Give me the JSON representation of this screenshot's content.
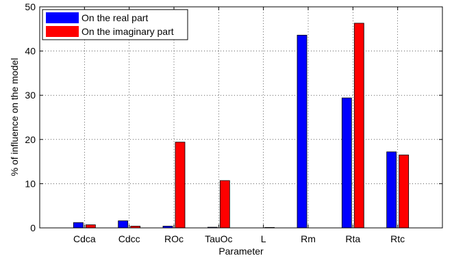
{
  "chart_data": {
    "type": "bar",
    "title": "",
    "xlabel": "Parameter",
    "ylabel": "% of influence on the model",
    "categories": [
      "Cdca",
      "Cdcc",
      "ROc",
      "TauOc",
      "L",
      "Rm",
      "Rta",
      "Rtc"
    ],
    "series": [
      {
        "name": "On the real part",
        "color": "#0000ff",
        "values": [
          1.2,
          1.6,
          0.4,
          0.15,
          0.0,
          43.6,
          29.4,
          17.2
        ]
      },
      {
        "name": "On the imaginary part",
        "color": "#ff0000",
        "values": [
          0.7,
          0.4,
          19.4,
          10.7,
          0.1,
          0.0,
          46.3,
          16.5
        ]
      }
    ],
    "ylim": [
      0,
      50
    ],
    "yticks": [
      0,
      10,
      20,
      30,
      40,
      50
    ],
    "grid": true,
    "legend": "top-left"
  }
}
